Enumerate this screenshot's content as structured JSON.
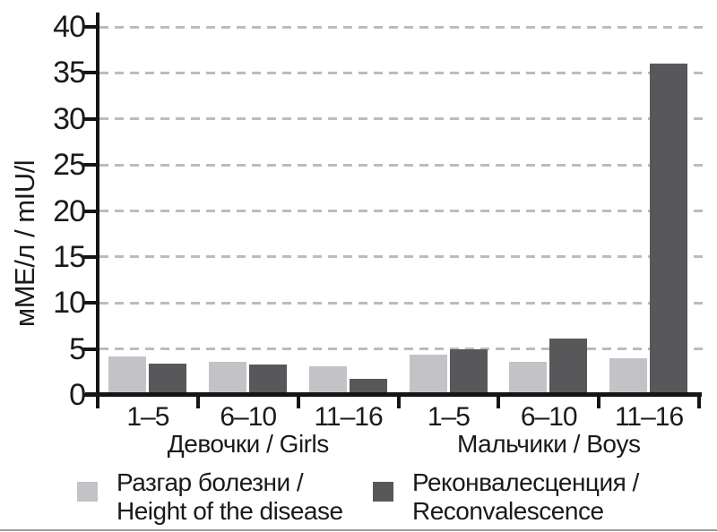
{
  "figure": {
    "background": "#ffffff",
    "text_color": "#1a1a1a",
    "axis_color": "#151515",
    "gridline_color": "#bcbcbc"
  },
  "chart_data": {
    "type": "bar",
    "title": "",
    "xlabel": "",
    "ylabel": "мМЕ/л / mIU/l",
    "ylim": [
      0,
      40
    ],
    "yticks": [
      0,
      5,
      10,
      15,
      20,
      25,
      30,
      35,
      40
    ],
    "grid": {
      "axis": "y",
      "style": "dashed",
      "color": "#bcbcbc"
    },
    "legend_position": "bottom",
    "groups": [
      {
        "label": "Девочки / Girls",
        "categories": [
          "1–5",
          "6–10",
          "11–16"
        ]
      },
      {
        "label": "Мальчики / Boys",
        "categories": [
          "1–5",
          "6–10",
          "11–16"
        ]
      }
    ],
    "categories": [
      "1–5",
      "6–10",
      "11–16",
      "1–5",
      "6–10",
      "11–16"
    ],
    "series": [
      {
        "name": "Разгар болезни / Height of the disease",
        "color": "#c3c3c7",
        "values": [
          4.2,
          3.6,
          3.1,
          4.4,
          3.6,
          4.0
        ]
      },
      {
        "name": "Реконвалесценция / Reconvalescence",
        "color": "#58585a",
        "values": [
          3.4,
          3.3,
          1.8,
          5.0,
          6.1,
          36.0
        ]
      }
    ],
    "legend": [
      {
        "line1": "Разгар болезни /",
        "line2": "Height of the disease",
        "color": "#c3c3c7"
      },
      {
        "line1": "Реконвалесценция /",
        "line2": "Reconvalescence",
        "color": "#58585a"
      }
    ]
  }
}
